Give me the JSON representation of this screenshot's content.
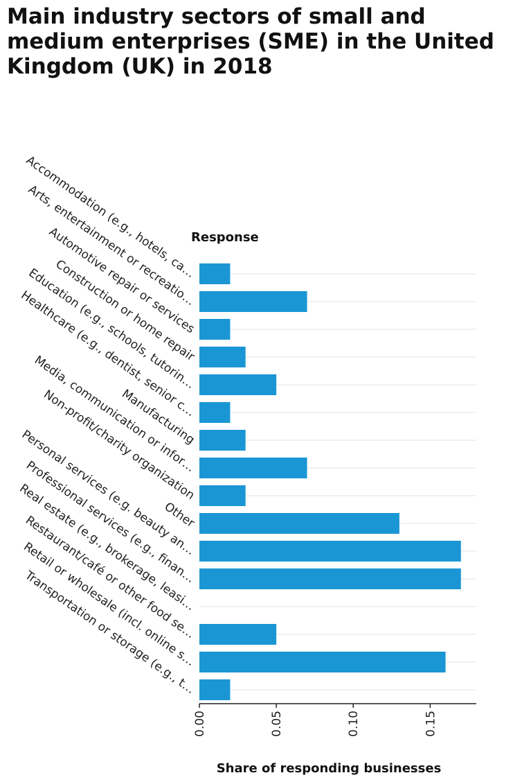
{
  "chart_data": {
    "type": "bar",
    "orientation": "horizontal",
    "title": "Main industry sectors of small and medium enterprises (SME) in the United Kingdom (UK) in 2018",
    "ylabel": "Response",
    "xlabel": "Share of responding businesses",
    "categories": [
      "Accommodation (e.g., hotels, ca…",
      "Arts, entertainment or recreatio…",
      "Automotive repair or services",
      "Construction or home repair",
      "Education (e.g., schools, tutorin…",
      "Healthcare (e.g., dentist, senior c…",
      "Manufacturing",
      "Media, communication or infor…",
      "Non-profit/charity organization",
      "Other",
      "Personal services (e.g. beauty an…",
      "Professional services (e.g., finan…",
      "Real estate (e.g., brokerage, leasi…",
      "Restaurant/café or other food se…",
      "Retail or wholesale (incl. online s…",
      "Transportation or storage (e.g., t…"
    ],
    "values": [
      0.02,
      0.07,
      0.02,
      0.03,
      0.05,
      0.02,
      0.03,
      0.07,
      0.03,
      0.13,
      0.17,
      0.17,
      0.0,
      0.05,
      0.16,
      0.02
    ],
    "xlim": [
      0,
      0.18
    ],
    "xticks": [
      "0.00",
      "0.05",
      "0.10",
      "0.15"
    ],
    "xtick_values": [
      0,
      0.05,
      0.1,
      0.15
    ],
    "grid": "horizontal",
    "legend": "none",
    "bar_color": "#1a96d4"
  }
}
